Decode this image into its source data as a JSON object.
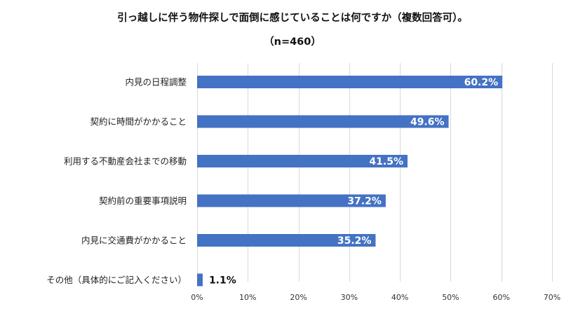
{
  "chart_data": {
    "type": "bar",
    "orientation": "horizontal",
    "title": "引っ越しに伴う物件探しで面倒に感じていることは何ですか（複数回答可）。",
    "subtitle": "（n=460）",
    "categories": [
      "内見の日程調整",
      "契約に時間がかかること",
      "利用する不動産会社までの移動",
      "契約前の重要事項説明",
      "内見に交通費がかかること",
      "その他（具体的にご記入ください）"
    ],
    "values": [
      60.2,
      49.6,
      41.5,
      37.2,
      35.2,
      1.1
    ],
    "value_labels": [
      "60.2%",
      "49.6%",
      "41.5%",
      "37.2%",
      "35.2%",
      "1.1%"
    ],
    "xlim": [
      0,
      70
    ],
    "x_ticks": [
      0,
      10,
      20,
      30,
      40,
      50,
      60,
      70
    ],
    "x_tick_labels": [
      "0%",
      "10%",
      "20%",
      "30%",
      "40%",
      "50%",
      "60%",
      "70%"
    ],
    "grid": "vertical",
    "bar_color": "#4472c4"
  }
}
